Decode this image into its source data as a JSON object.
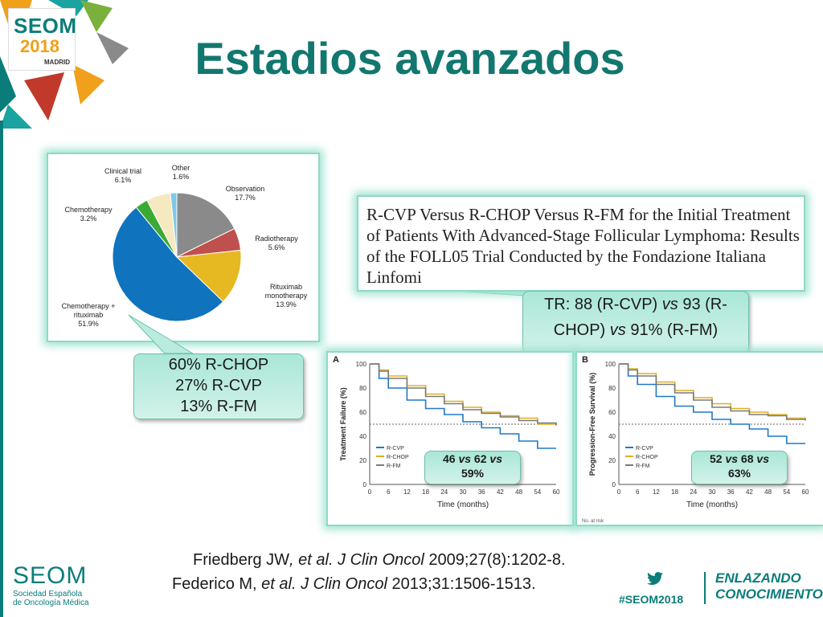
{
  "logo": {
    "name": "SEOM",
    "year": "2018",
    "city": "MADRID"
  },
  "title": "Estadios avanzados",
  "pie": {
    "slices": [
      {
        "label": "Observation",
        "value": "17.7%",
        "pct": 17.7,
        "color": "#8a8a8a"
      },
      {
        "label": "Radiotherapy",
        "value": "5.6%",
        "pct": 5.6,
        "color": "#c0504d"
      },
      {
        "label": "Rituximab monotherapy",
        "value": "13.9%",
        "pct": 13.9,
        "color": "#e6b822"
      },
      {
        "label": "Chemotherapy + rituximab",
        "value": "51.9%",
        "pct": 51.9,
        "color": "#0f73bd"
      },
      {
        "label": "Chemotherapy",
        "value": "3.2%",
        "pct": 3.2,
        "color": "#3aaa35"
      },
      {
        "label": "Clinical trial",
        "value": "6.1%",
        "pct": 6.1,
        "color": "#f5eabf"
      },
      {
        "label": "Other",
        "value": "1.6%",
        "pct": 1.6,
        "color": "#7fc8e8"
      }
    ]
  },
  "callout_pie": [
    "60% R-CHOP",
    "27% R-CVP",
    "13% R-FM"
  ],
  "trial_title": "R-CVP Versus R-CHOP Versus R-FM for the Initial Treatment of Patients With Advanced-Stage Follicular Lymphoma: Results of the FOLL05 Trial Conducted by the Fondazione Italiana Linfomi",
  "callout_tr": {
    "prefix": "TR: 88 (R-CVP) ",
    "vs1": "vs",
    "mid": " 93 (R-CHOP) ",
    "vs2": "vs",
    "suffix": " 91%  (R-FM)"
  },
  "plots": {
    "a": {
      "panel": "A",
      "ylabel": "Treatment Failure (%)",
      "xlabel": "Time (months)",
      "callout": {
        "n1": "46 ",
        "vs1": "vs",
        "n2": " 62 ",
        "vs2": "vs",
        "n3": "59%"
      }
    },
    "b": {
      "panel": "B",
      "ylabel": "Progression-Free Survival (%)",
      "xlabel": "Time (months)",
      "footnote": "No. at risk",
      "callout": {
        "n1": "52 ",
        "vs1": "vs",
        "n2": " 68 ",
        "vs2": "vs",
        "n3": "63%"
      }
    },
    "yticks": [
      "100",
      "80",
      "60",
      "40",
      "20",
      "0"
    ],
    "xticks": [
      "0",
      "6",
      "12",
      "18",
      "24",
      "30",
      "36",
      "42",
      "48",
      "54",
      "60"
    ],
    "legend": [
      {
        "label": "R-CVP",
        "color": "#1f78c8"
      },
      {
        "label": "R-CHOP",
        "color": "#e0b020"
      },
      {
        "label": "R-FM",
        "color": "#7a7a7a"
      }
    ]
  },
  "chart_data": [
    {
      "type": "pie",
      "title": "",
      "categories": [
        "Observation",
        "Radiotherapy",
        "Rituximab monotherapy",
        "Chemotherapy + rituximab",
        "Chemotherapy",
        "Clinical trial",
        "Other"
      ],
      "values": [
        17.7,
        5.6,
        13.9,
        51.9,
        3.2,
        6.1,
        1.6
      ]
    },
    {
      "type": "line",
      "title": "A",
      "xlabel": "Time (months)",
      "ylabel": "Treatment Failure (%)",
      "xlim": [
        0,
        60
      ],
      "ylim": [
        0,
        100
      ],
      "series": [
        {
          "name": "R-CVP",
          "x": [
            0,
            3,
            6,
            12,
            18,
            24,
            30,
            36,
            42,
            48,
            54,
            60
          ],
          "y": [
            100,
            88,
            80,
            70,
            63,
            58,
            52,
            47,
            42,
            36,
            30,
            30
          ]
        },
        {
          "name": "R-CHOP",
          "x": [
            0,
            3,
            6,
            12,
            18,
            24,
            30,
            36,
            42,
            48,
            54,
            60
          ],
          "y": [
            100,
            95,
            90,
            82,
            75,
            69,
            64,
            60,
            57,
            55,
            50,
            49
          ]
        },
        {
          "name": "R-FM",
          "x": [
            0,
            3,
            6,
            12,
            18,
            24,
            30,
            36,
            42,
            48,
            54,
            60
          ],
          "y": [
            100,
            94,
            88,
            80,
            73,
            67,
            62,
            59,
            56,
            53,
            51,
            49
          ]
        }
      ]
    },
    {
      "type": "line",
      "title": "B",
      "xlabel": "Time (months)",
      "ylabel": "Progression-Free Survival (%)",
      "xlim": [
        0,
        60
      ],
      "ylim": [
        0,
        100
      ],
      "series": [
        {
          "name": "R-CVP",
          "x": [
            0,
            3,
            6,
            12,
            18,
            24,
            30,
            36,
            42,
            48,
            54,
            60
          ],
          "y": [
            100,
            90,
            83,
            73,
            65,
            60,
            54,
            50,
            46,
            40,
            34,
            34
          ]
        },
        {
          "name": "R-CHOP",
          "x": [
            0,
            3,
            6,
            12,
            18,
            24,
            30,
            36,
            42,
            48,
            54,
            60
          ],
          "y": [
            100,
            96,
            92,
            85,
            78,
            72,
            67,
            63,
            60,
            58,
            55,
            54
          ]
        },
        {
          "name": "R-FM",
          "x": [
            0,
            3,
            6,
            12,
            18,
            24,
            30,
            36,
            42,
            48,
            54,
            60
          ],
          "y": [
            100,
            95,
            90,
            83,
            76,
            70,
            64,
            61,
            58,
            57,
            54,
            53
          ]
        }
      ]
    }
  ],
  "refs": [
    {
      "a": "Friedberg JW",
      "b": ", et al. J Clin Oncol",
      "c": " 2009;27(8):1202-8."
    },
    {
      "a": "Federico M, ",
      "b": "et al. J Clin Oncol",
      "c": " 2013;31:1506-1513."
    }
  ],
  "footer": {
    "seom": "SEOM",
    "society_line1": "Sociedad Española",
    "society_line2": "de Oncología Médica",
    "hashtag": "#SEOM2018",
    "slogan1": "ENLAZANDO",
    "slogan2": "CONOCIMIENTO",
    "icon": "twitter-icon"
  }
}
